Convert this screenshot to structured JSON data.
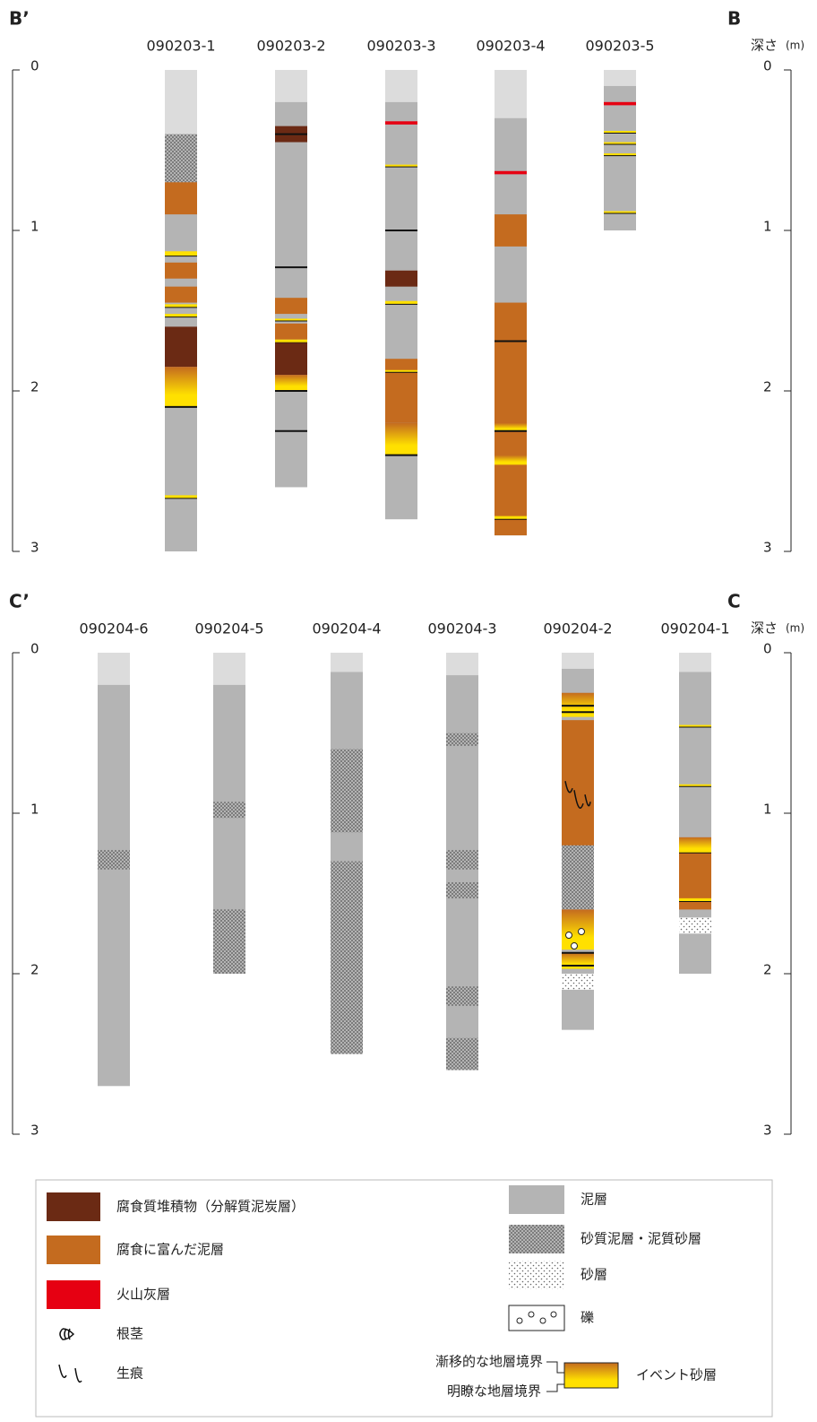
{
  "sections": [
    {
      "left_label": "B’",
      "right_label": "B",
      "depth_label": "深さ",
      "depth_unit": "(m)",
      "ticks": [
        0,
        1,
        2,
        3
      ],
      "cores": [
        {
          "name": "090203-1",
          "top": 0.4,
          "depth": 3.0,
          "layers": [
            [
              0.4,
              0.7,
              6
            ],
            [
              0.7,
              0.9,
              1
            ],
            [
              1.13,
              1.16,
              11
            ],
            [
              1.2,
              1.3,
              1
            ],
            [
              1.35,
              1.45,
              1
            ],
            [
              1.46,
              1.48,
              11
            ],
            [
              1.52,
              1.54,
              11
            ],
            [
              1.6,
              1.85,
              0
            ],
            [
              1.85,
              2.1,
              11
            ],
            [
              2.1,
              2.1,
              10
            ],
            [
              2.65,
              2.67,
              11
            ]
          ]
        },
        {
          "name": "090203-2",
          "top": 0.2,
          "depth": 2.6,
          "layers": [
            [
              0.35,
              0.45,
              0
            ],
            [
              0.4,
              0.4,
              10
            ],
            [
              1.23,
              1.24,
              10
            ],
            [
              1.42,
              1.52,
              1
            ],
            [
              1.55,
              1.56,
              11
            ],
            [
              1.58,
              1.68,
              1
            ],
            [
              1.68,
              1.7,
              11
            ],
            [
              1.7,
              1.9,
              0
            ],
            [
              1.9,
              2.0,
              11
            ],
            [
              2.0,
              2.0,
              10
            ],
            [
              2.25,
              2.25,
              10
            ]
          ]
        },
        {
          "name": "090203-3",
          "top": 0.2,
          "depth": 2.8,
          "layers": [
            [
              0.32,
              0.34,
              2
            ],
            [
              0.59,
              0.6,
              11
            ],
            [
              1.0,
              1.0,
              10
            ],
            [
              1.25,
              1.35,
              0
            ],
            [
              1.44,
              1.46,
              11
            ],
            [
              1.8,
              2.2,
              1
            ],
            [
              1.87,
              1.88,
              11
            ],
            [
              2.2,
              2.4,
              11
            ],
            [
              2.4,
              2.4,
              10
            ]
          ]
        },
        {
          "name": "090203-4",
          "top": 0.3,
          "depth": 2.9,
          "layers": [
            [
              0.63,
              0.65,
              2
            ],
            [
              0.9,
              1.1,
              1
            ],
            [
              1.45,
              2.9,
              1
            ],
            [
              1.69,
              1.7,
              10
            ],
            [
              2.2,
              2.25,
              11
            ],
            [
              2.25,
              2.25,
              10
            ],
            [
              2.4,
              2.46,
              11
            ],
            [
              2.78,
              2.8,
              11
            ]
          ]
        },
        {
          "name": "090203-5",
          "top": 0.1,
          "depth": 1.0,
          "layers": [
            [
              0.2,
              0.22,
              2
            ],
            [
              0.38,
              0.39,
              11
            ],
            [
              0.45,
              0.46,
              11
            ],
            [
              0.52,
              0.53,
              11
            ],
            [
              0.88,
              0.89,
              11
            ]
          ]
        }
      ]
    },
    {
      "left_label": "C’",
      "right_label": "C",
      "depth_label": "深さ",
      "depth_unit": "(m)",
      "ticks": [
        0,
        1,
        2,
        3
      ],
      "cores": [
        {
          "name": "090204-6",
          "top": 0.2,
          "depth": 2.7,
          "layers": [
            [
              1.23,
              1.35,
              6
            ]
          ]
        },
        {
          "name": "090204-5",
          "top": 0.2,
          "depth": 2.0,
          "layers": [
            [
              0.93,
              1.03,
              6
            ],
            [
              1.6,
              2.0,
              6
            ]
          ]
        },
        {
          "name": "090204-4",
          "top": 0.12,
          "depth": 2.5,
          "layers": [
            [
              0.6,
              1.12,
              6
            ],
            [
              1.3,
              2.5,
              6
            ]
          ]
        },
        {
          "name": "090204-3",
          "top": 0.14,
          "depth": 2.6,
          "layers": [
            [
              0.5,
              0.58,
              6
            ],
            [
              1.23,
              1.35,
              6
            ],
            [
              1.43,
              1.53,
              6
            ],
            [
              2.08,
              2.2,
              6
            ],
            [
              2.4,
              2.6,
              6
            ]
          ]
        },
        {
          "name": "090204-2",
          "top": 0.1,
          "depth": 2.35,
          "layers": [
            [
              0.25,
              0.4,
              11
            ],
            [
              0.33,
              0.33,
              10
            ],
            [
              0.37,
              0.37,
              10
            ],
            [
              0.42,
              1.8,
              1
            ],
            [
              1.2,
              1.7,
              6
            ],
            [
              1.6,
              1.85,
              11
            ],
            [
              1.87,
              1.97,
              11
            ],
            [
              1.87,
              1.87,
              10
            ],
            [
              1.95,
              1.95,
              10
            ],
            [
              2.0,
              2.1,
              7
            ],
            [
              0.8,
              1.0,
              4
            ],
            [
              1.7,
              1.82,
              8
            ]
          ]
        },
        {
          "name": "090204-1",
          "top": 0.12,
          "depth": 2.0,
          "layers": [
            [
              0.45,
              0.46,
              11
            ],
            [
              0.82,
              0.83,
              11
            ],
            [
              1.15,
              1.25,
              11
            ],
            [
              1.25,
              1.25,
              10
            ],
            [
              1.25,
              1.6,
              1
            ],
            [
              1.53,
              1.55,
              11
            ],
            [
              1.65,
              1.75,
              7
            ]
          ]
        }
      ]
    }
  ],
  "legend": [
    "腐食質堆積物（分解質泥炭層）",
    "腐食に富んだ泥層",
    "火山灰層",
    "根茎",
    "生痕",
    "泥層",
    "砂質泥層・泥質砂層",
    "砂層",
    "礫",
    "漸移的な地層境界",
    "明瞭な地層境界",
    "イベント砂層"
  ]
}
